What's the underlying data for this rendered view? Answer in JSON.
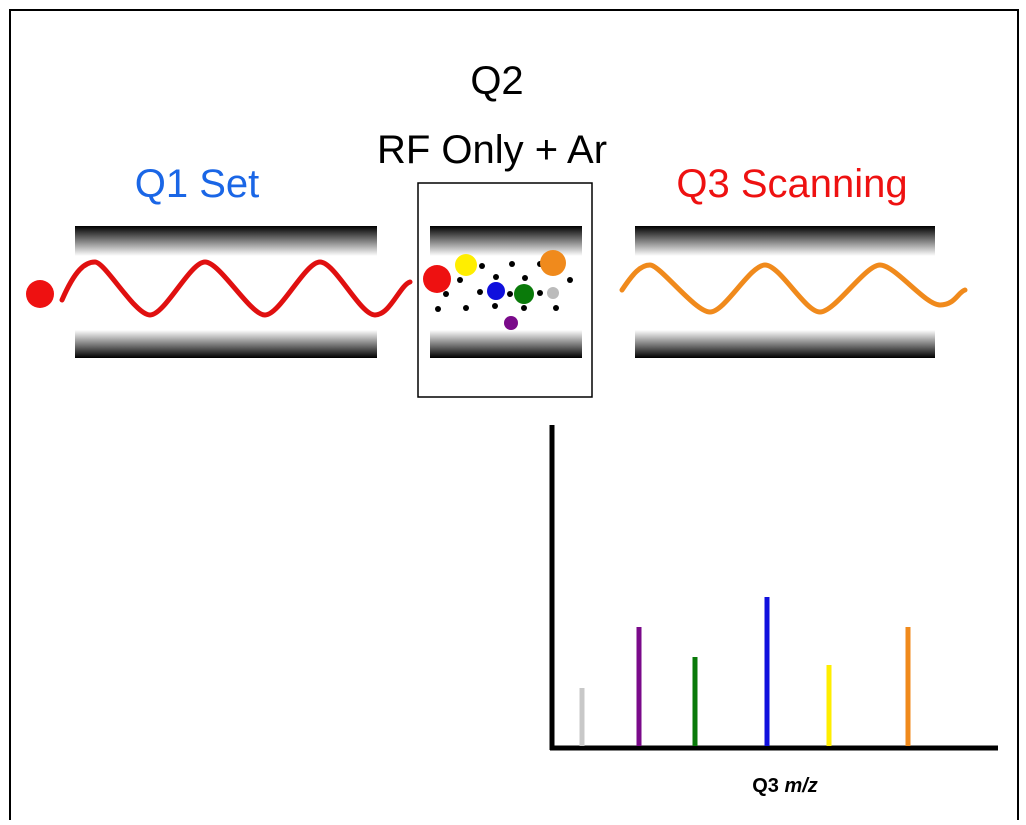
{
  "labels": {
    "q1": "Q1 Set",
    "q2": "Q2",
    "q2_mode": "RF Only + Ar",
    "q3": "Q3 Scanning"
  },
  "axis_label": {
    "main": "Q3",
    "unit": "m/z"
  }
}
